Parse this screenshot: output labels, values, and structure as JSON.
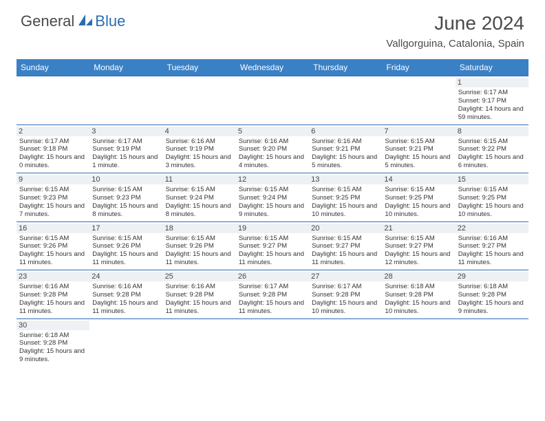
{
  "brand": {
    "part1": "General",
    "part2": "Blue"
  },
  "title": "June 2024",
  "location": "Vallgorguina, Catalonia, Spain",
  "colors": {
    "header_bg": "#3a80c5",
    "border": "#2a6cb5",
    "daynum_bg": "#eef1f4",
    "text": "#333333",
    "title": "#4a4a4a"
  },
  "weekdays": [
    "Sunday",
    "Monday",
    "Tuesday",
    "Wednesday",
    "Thursday",
    "Friday",
    "Saturday"
  ],
  "weeks": [
    [
      null,
      null,
      null,
      null,
      null,
      null,
      {
        "n": "1",
        "sr": "6:17 AM",
        "ss": "9:17 PM",
        "dl": "14 hours and 59 minutes."
      }
    ],
    [
      {
        "n": "2",
        "sr": "6:17 AM",
        "ss": "9:18 PM",
        "dl": "15 hours and 0 minutes."
      },
      {
        "n": "3",
        "sr": "6:17 AM",
        "ss": "9:19 PM",
        "dl": "15 hours and 1 minute."
      },
      {
        "n": "4",
        "sr": "6:16 AM",
        "ss": "9:19 PM",
        "dl": "15 hours and 3 minutes."
      },
      {
        "n": "5",
        "sr": "6:16 AM",
        "ss": "9:20 PM",
        "dl": "15 hours and 4 minutes."
      },
      {
        "n": "6",
        "sr": "6:16 AM",
        "ss": "9:21 PM",
        "dl": "15 hours and 5 minutes."
      },
      {
        "n": "7",
        "sr": "6:15 AM",
        "ss": "9:21 PM",
        "dl": "15 hours and 5 minutes."
      },
      {
        "n": "8",
        "sr": "6:15 AM",
        "ss": "9:22 PM",
        "dl": "15 hours and 6 minutes."
      }
    ],
    [
      {
        "n": "9",
        "sr": "6:15 AM",
        "ss": "9:23 PM",
        "dl": "15 hours and 7 minutes."
      },
      {
        "n": "10",
        "sr": "6:15 AM",
        "ss": "9:23 PM",
        "dl": "15 hours and 8 minutes."
      },
      {
        "n": "11",
        "sr": "6:15 AM",
        "ss": "9:24 PM",
        "dl": "15 hours and 8 minutes."
      },
      {
        "n": "12",
        "sr": "6:15 AM",
        "ss": "9:24 PM",
        "dl": "15 hours and 9 minutes."
      },
      {
        "n": "13",
        "sr": "6:15 AM",
        "ss": "9:25 PM",
        "dl": "15 hours and 10 minutes."
      },
      {
        "n": "14",
        "sr": "6:15 AM",
        "ss": "9:25 PM",
        "dl": "15 hours and 10 minutes."
      },
      {
        "n": "15",
        "sr": "6:15 AM",
        "ss": "9:25 PM",
        "dl": "15 hours and 10 minutes."
      }
    ],
    [
      {
        "n": "16",
        "sr": "6:15 AM",
        "ss": "9:26 PM",
        "dl": "15 hours and 11 minutes."
      },
      {
        "n": "17",
        "sr": "6:15 AM",
        "ss": "9:26 PM",
        "dl": "15 hours and 11 minutes."
      },
      {
        "n": "18",
        "sr": "6:15 AM",
        "ss": "9:26 PM",
        "dl": "15 hours and 11 minutes."
      },
      {
        "n": "19",
        "sr": "6:15 AM",
        "ss": "9:27 PM",
        "dl": "15 hours and 11 minutes."
      },
      {
        "n": "20",
        "sr": "6:15 AM",
        "ss": "9:27 PM",
        "dl": "15 hours and 11 minutes."
      },
      {
        "n": "21",
        "sr": "6:15 AM",
        "ss": "9:27 PM",
        "dl": "15 hours and 12 minutes."
      },
      {
        "n": "22",
        "sr": "6:16 AM",
        "ss": "9:27 PM",
        "dl": "15 hours and 11 minutes."
      }
    ],
    [
      {
        "n": "23",
        "sr": "6:16 AM",
        "ss": "9:28 PM",
        "dl": "15 hours and 11 minutes."
      },
      {
        "n": "24",
        "sr": "6:16 AM",
        "ss": "9:28 PM",
        "dl": "15 hours and 11 minutes."
      },
      {
        "n": "25",
        "sr": "6:16 AM",
        "ss": "9:28 PM",
        "dl": "15 hours and 11 minutes."
      },
      {
        "n": "26",
        "sr": "6:17 AM",
        "ss": "9:28 PM",
        "dl": "15 hours and 11 minutes."
      },
      {
        "n": "27",
        "sr": "6:17 AM",
        "ss": "9:28 PM",
        "dl": "15 hours and 10 minutes."
      },
      {
        "n": "28",
        "sr": "6:18 AM",
        "ss": "9:28 PM",
        "dl": "15 hours and 10 minutes."
      },
      {
        "n": "29",
        "sr": "6:18 AM",
        "ss": "9:28 PM",
        "dl": "15 hours and 9 minutes."
      }
    ],
    [
      {
        "n": "30",
        "sr": "6:18 AM",
        "ss": "9:28 PM",
        "dl": "15 hours and 9 minutes."
      },
      null,
      null,
      null,
      null,
      null,
      null
    ]
  ],
  "labels": {
    "sunrise": "Sunrise:",
    "sunset": "Sunset:",
    "daylight": "Daylight:"
  }
}
